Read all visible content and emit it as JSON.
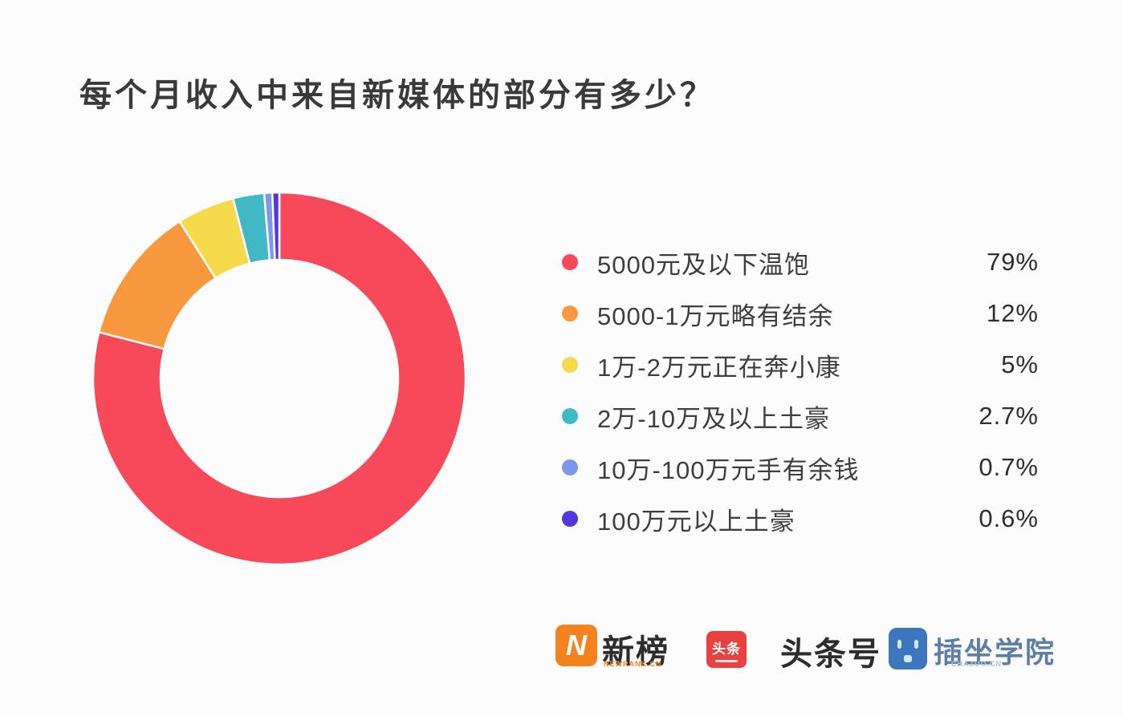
{
  "page": {
    "background_color": "#fcfcfc"
  },
  "title": "每个月收入中来自新媒体的部分有多少？",
  "chart_data": {
    "type": "pie",
    "subtype": "donut",
    "title": "每个月收入中来自新媒体的部分有多少？",
    "start_angle_deg": 0,
    "direction": "clockwise",
    "legend_position": "right",
    "inner_radius_ratio": 0.64,
    "segment_gap_color": "#ffffff",
    "series": [
      {
        "label": "5000元及以下温饱",
        "value": 79,
        "value_label": "79%",
        "color": "#f8495a"
      },
      {
        "label": "5000-1万元略有结余",
        "value": 12,
        "value_label": "12%",
        "color": "#f8993f"
      },
      {
        "label": "1万-2万元正在奔小康",
        "value": 5,
        "value_label": "5%",
        "color": "#f7d94c"
      },
      {
        "label": "2万-10万及以上土豪",
        "value": 2.7,
        "value_label": "2.7%",
        "color": "#41b9c5"
      },
      {
        "label": "10万-100万元手有余钱",
        "value": 0.7,
        "value_label": "0.7%",
        "color": "#7e97ed"
      },
      {
        "label": "100万元以上土豪",
        "value": 0.6,
        "value_label": "0.6%",
        "color": "#5138de"
      }
    ]
  },
  "footer": {
    "newrank": {
      "name": "新榜",
      "subtext": "NEWRANK.CN",
      "icon_letter": "N",
      "icon_color": "#f5821c"
    },
    "toutiao": {
      "name": "头条号",
      "icon_text": "头条",
      "icon_color": "#e94040"
    },
    "chazuo": {
      "name": "插坐学院",
      "subtext": "CHAZUO.CN",
      "icon_color": "#3b76be"
    }
  }
}
